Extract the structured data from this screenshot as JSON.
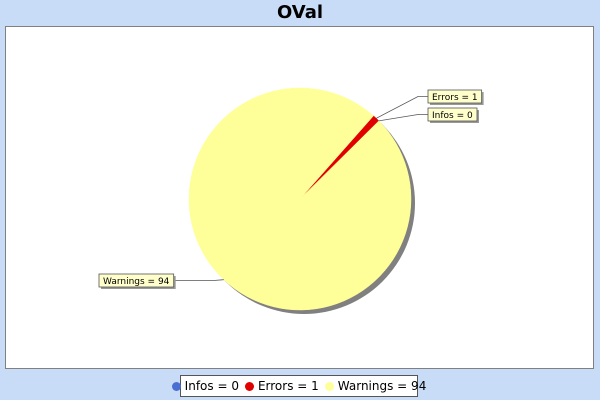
{
  "chart_data": {
    "type": "pie",
    "title": "OVal",
    "slices": [
      {
        "name": "Infos",
        "value": 0,
        "color": "#4a6fd4",
        "label": "Infos = 0"
      },
      {
        "name": "Errors",
        "value": 1,
        "color": "#e00000",
        "label": "Errors = 1"
      },
      {
        "name": "Warnings",
        "value": 94,
        "color": "#ffff99",
        "label": "Warnings = 94"
      }
    ],
    "legend": {
      "placement": "bottom",
      "entries": [
        "Infos = 0",
        "Errors = 1",
        "Warnings = 94"
      ]
    },
    "background_color": "#c8dcf8",
    "plot_background": "#ffffff",
    "shadow_color": "#808080",
    "label_box_color": "#ffffcc"
  }
}
